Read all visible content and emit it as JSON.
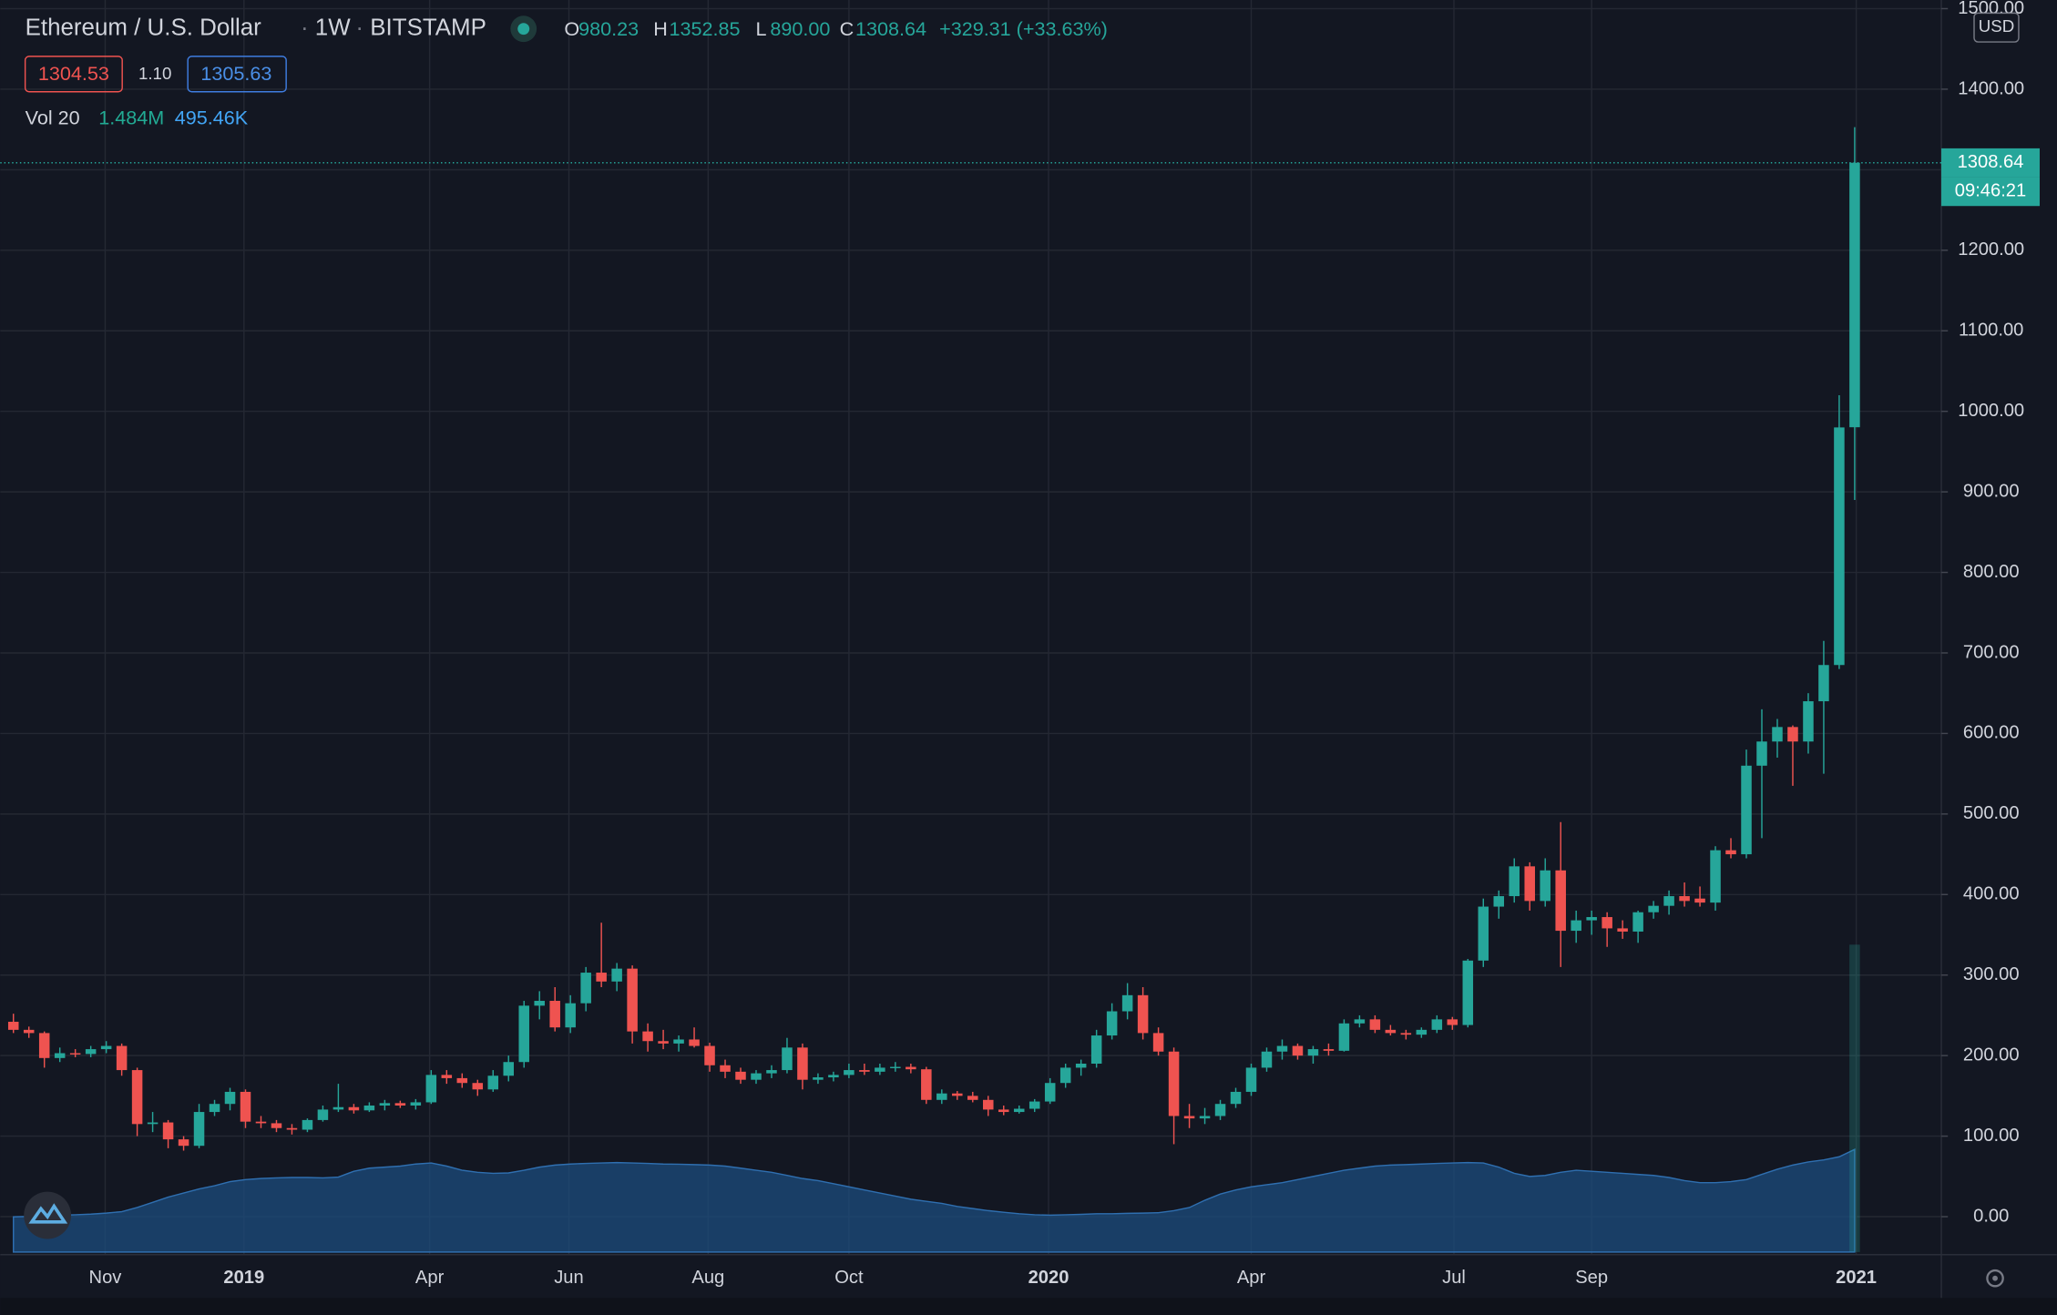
{
  "chart_data": {
    "type": "candlestick",
    "header": {
      "title": "Ethereum / U.S. Dollar",
      "interval": "1W",
      "exchange": "BITSTAMP",
      "open_letter": "O",
      "open": "980.23",
      "high_letter": "H",
      "high": "1352.85",
      "low_letter": "L",
      "low": "890.00",
      "close_letter": "C",
      "close": "1308.64",
      "change": "+329.31 (+33.63%)",
      "bid": "1304.53",
      "spread": "1.10",
      "ask": "1305.63",
      "volume_name": "Vol 20",
      "volume": {
        "value": 1484000,
        "label": "1.484M"
      },
      "volume_ma": {
        "value": 495460,
        "label": "495.46K"
      }
    },
    "currency": "USD",
    "countdown": "09:46:21",
    "up_color": "#26a69a",
    "down_color": "#ef5350",
    "grid": true,
    "ylim": [
      0,
      1500
    ],
    "yticks": [
      {
        "value": 0,
        "label": "0.00"
      },
      {
        "value": 100,
        "label": "100.00"
      },
      {
        "value": 200,
        "label": "200.00"
      },
      {
        "value": 300,
        "label": "300.00"
      },
      {
        "value": 400,
        "label": "400.00"
      },
      {
        "value": 500,
        "label": "500.00"
      },
      {
        "value": 600,
        "label": "600.00"
      },
      {
        "value": 700,
        "label": "700.00"
      },
      {
        "value": 800,
        "label": "800.00"
      },
      {
        "value": 900,
        "label": "900.00"
      },
      {
        "value": 1000,
        "label": "1000.00"
      },
      {
        "value": 1100,
        "label": "1100.00"
      },
      {
        "value": 1200,
        "label": "1200.00"
      },
      {
        "value": 1300,
        "label": "1300.00"
      },
      {
        "value": 1400,
        "label": "1400.00"
      },
      {
        "value": 1500,
        "label": "1500.00"
      }
    ],
    "xlim": [
      -0.85,
      124.6
    ],
    "xticks": [
      {
        "value": 5.93,
        "label": "Nov"
      },
      {
        "value": 14.9,
        "label": "2019"
      },
      {
        "value": 26.9,
        "label": "Apr"
      },
      {
        "value": 35.9,
        "label": "Jun"
      },
      {
        "value": 44.9,
        "label": "Aug"
      },
      {
        "value": 54.0,
        "label": "Oct"
      },
      {
        "value": 66.9,
        "label": "2020"
      },
      {
        "value": 80.0,
        "label": "Apr"
      },
      {
        "value": 93.1,
        "label": "Jul"
      },
      {
        "value": 102.0,
        "label": "Sep"
      },
      {
        "value": 119.1,
        "label": "2021"
      }
    ],
    "vol_ylim": [
      0,
      6000000
    ],
    "ohlc": [
      [
        242,
        252,
        228,
        232
      ],
      [
        232,
        236,
        222,
        228
      ],
      [
        228,
        230,
        185,
        197
      ],
      [
        197,
        210,
        192,
        203
      ],
      [
        203,
        208,
        198,
        202
      ],
      [
        202,
        212,
        198,
        208
      ],
      [
        208,
        218,
        203,
        212
      ],
      [
        212,
        215,
        175,
        182
      ],
      [
        182,
        185,
        100,
        115
      ],
      [
        115,
        130,
        105,
        117
      ],
      [
        117,
        120,
        85,
        96
      ],
      [
        96,
        100,
        82,
        88
      ],
      [
        88,
        140,
        85,
        130
      ],
      [
        130,
        145,
        125,
        140
      ],
      [
        140,
        160,
        132,
        155
      ],
      [
        155,
        158,
        110,
        118
      ],
      [
        118,
        125,
        110,
        116
      ],
      [
        116,
        120,
        105,
        110
      ],
      [
        110,
        115,
        102,
        108
      ],
      [
        108,
        122,
        105,
        120
      ],
      [
        120,
        138,
        118,
        133
      ],
      [
        133,
        165,
        130,
        136
      ],
      [
        136,
        140,
        128,
        132
      ],
      [
        132,
        142,
        130,
        138
      ],
      [
        138,
        145,
        132,
        141
      ],
      [
        141,
        144,
        135,
        138
      ],
      [
        138,
        146,
        133,
        142
      ],
      [
        142,
        182,
        140,
        176
      ],
      [
        176,
        182,
        165,
        172
      ],
      [
        172,
        178,
        160,
        166
      ],
      [
        166,
        170,
        150,
        158
      ],
      [
        158,
        182,
        155,
        175
      ],
      [
        175,
        200,
        168,
        192
      ],
      [
        192,
        268,
        185,
        262
      ],
      [
        262,
        280,
        245,
        268
      ],
      [
        268,
        285,
        230,
        235
      ],
      [
        235,
        275,
        228,
        265
      ],
      [
        265,
        310,
        255,
        303
      ],
      [
        303,
        365,
        285,
        292
      ],
      [
        292,
        315,
        280,
        308
      ],
      [
        308,
        312,
        215,
        230
      ],
      [
        230,
        240,
        205,
        218
      ],
      [
        218,
        232,
        208,
        215
      ],
      [
        215,
        225,
        205,
        220
      ],
      [
        220,
        235,
        210,
        212
      ],
      [
        212,
        216,
        180,
        188
      ],
      [
        188,
        195,
        172,
        180
      ],
      [
        180,
        185,
        165,
        170
      ],
      [
        170,
        182,
        165,
        178
      ],
      [
        178,
        188,
        172,
        182
      ],
      [
        182,
        222,
        178,
        210
      ],
      [
        210,
        215,
        158,
        170
      ],
      [
        170,
        178,
        165,
        173
      ],
      [
        173,
        180,
        168,
        176
      ],
      [
        176,
        190,
        172,
        182
      ],
      [
        182,
        190,
        176,
        180
      ],
      [
        180,
        190,
        176,
        185
      ],
      [
        185,
        192,
        180,
        186
      ],
      [
        186,
        190,
        178,
        183
      ],
      [
        183,
        186,
        140,
        145
      ],
      [
        145,
        158,
        140,
        153
      ],
      [
        153,
        156,
        145,
        150
      ],
      [
        150,
        155,
        142,
        145
      ],
      [
        145,
        150,
        125,
        133
      ],
      [
        133,
        138,
        126,
        130
      ],
      [
        130,
        138,
        128,
        134
      ],
      [
        134,
        146,
        130,
        143
      ],
      [
        143,
        172,
        140,
        166
      ],
      [
        166,
        190,
        160,
        185
      ],
      [
        185,
        195,
        175,
        190
      ],
      [
        190,
        232,
        185,
        225
      ],
      [
        225,
        265,
        220,
        255
      ],
      [
        255,
        290,
        245,
        275
      ],
      [
        275,
        285,
        220,
        228
      ],
      [
        228,
        235,
        200,
        205
      ],
      [
        205,
        210,
        90,
        125
      ],
      [
        125,
        140,
        110,
        122
      ],
      [
        122,
        135,
        115,
        125
      ],
      [
        125,
        145,
        120,
        140
      ],
      [
        140,
        160,
        135,
        155
      ],
      [
        155,
        190,
        150,
        185
      ],
      [
        185,
        210,
        180,
        205
      ],
      [
        205,
        220,
        195,
        212
      ],
      [
        212,
        215,
        195,
        200
      ],
      [
        200,
        212,
        190,
        208
      ],
      [
        208,
        215,
        200,
        206
      ],
      [
        206,
        245,
        205,
        240
      ],
      [
        240,
        250,
        235,
        245
      ],
      [
        245,
        250,
        228,
        232
      ],
      [
        232,
        238,
        225,
        228
      ],
      [
        228,
        232,
        220,
        226
      ],
      [
        226,
        235,
        222,
        232
      ],
      [
        232,
        250,
        228,
        245
      ],
      [
        245,
        248,
        232,
        238
      ],
      [
        238,
        320,
        235,
        318
      ],
      [
        318,
        395,
        310,
        385
      ],
      [
        385,
        405,
        370,
        398
      ],
      [
        398,
        445,
        390,
        435
      ],
      [
        435,
        440,
        380,
        392
      ],
      [
        392,
        445,
        385,
        430
      ],
      [
        430,
        490,
        310,
        355
      ],
      [
        355,
        380,
        340,
        368
      ],
      [
        368,
        380,
        350,
        372
      ],
      [
        372,
        378,
        335,
        358
      ],
      [
        358,
        368,
        345,
        354
      ],
      [
        354,
        380,
        340,
        378
      ],
      [
        378,
        392,
        370,
        386
      ],
      [
        386,
        405,
        375,
        398
      ],
      [
        398,
        415,
        385,
        392
      ],
      [
        395,
        410,
        385,
        390
      ],
      [
        390,
        460,
        380,
        455
      ],
      [
        455,
        470,
        445,
        450
      ],
      [
        450,
        580,
        445,
        560
      ],
      [
        560,
        630,
        470,
        590
      ],
      [
        590,
        618,
        570,
        608
      ],
      [
        608,
        610,
        535,
        590
      ],
      [
        590,
        650,
        575,
        640
      ],
      [
        640,
        715,
        550,
        685
      ],
      [
        685,
        1020,
        680,
        980
      ],
      [
        980.23,
        1352.85,
        890,
        1308.64
      ]
    ],
    "vol_ma": [
      170000,
      172000,
      175000,
      178000,
      180000,
      183000,
      188000,
      195000,
      215000,
      240000,
      265000,
      285000,
      305000,
      320000,
      340000,
      350000,
      355000,
      358000,
      360000,
      360000,
      358000,
      362000,
      390000,
      405000,
      410000,
      415000,
      425000,
      430000,
      415000,
      395000,
      385000,
      380000,
      382000,
      395000,
      410000,
      420000,
      425000,
      428000,
      430000,
      432000,
      430000,
      428000,
      425000,
      424000,
      422000,
      420000,
      415000,
      405000,
      395000,
      385000,
      370000,
      355000,
      345000,
      330000,
      315000,
      300000,
      285000,
      270000,
      255000,
      245000,
      235000,
      220000,
      210000,
      200000,
      192000,
      185000,
      180000,
      178000,
      180000,
      182000,
      185000,
      185000,
      187000,
      188000,
      190000,
      200000,
      215000,
      250000,
      280000,
      300000,
      315000,
      325000,
      335000,
      350000,
      365000,
      380000,
      395000,
      405000,
      415000,
      420000,
      422000,
      425000,
      428000,
      430000,
      432000,
      430000,
      410000,
      380000,
      365000,
      370000,
      385000,
      395000,
      390000,
      385000,
      380000,
      375000,
      370000,
      360000,
      345000,
      335000,
      335000,
      340000,
      350000,
      375000,
      400000,
      420000,
      435000,
      445000,
      460000,
      495460
    ]
  }
}
